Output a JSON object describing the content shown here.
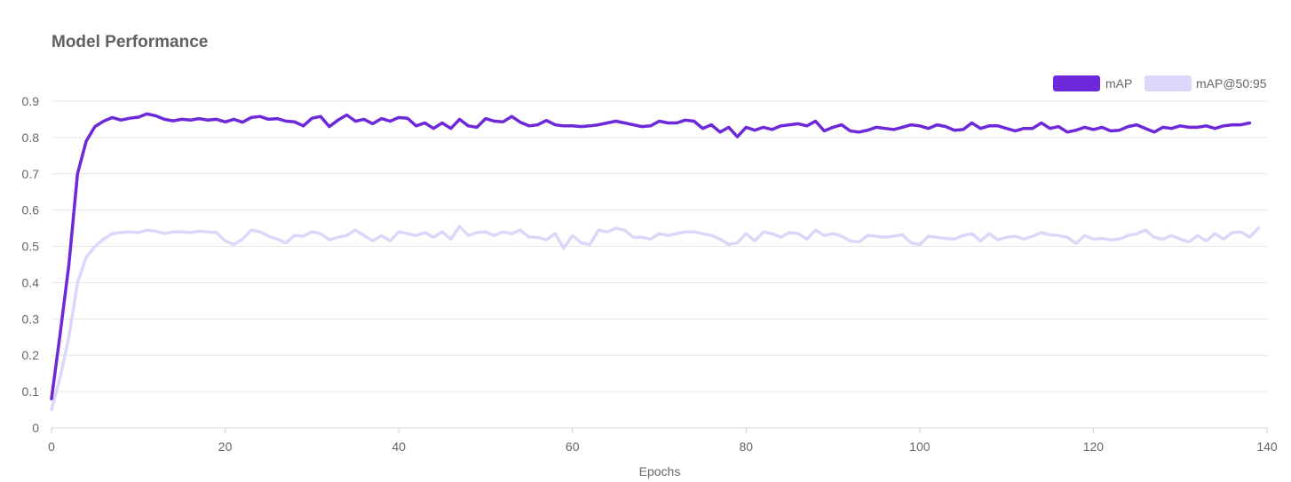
{
  "chart_data": {
    "type": "line",
    "title": "Model Performance",
    "xlabel": "Epochs",
    "ylabel": "",
    "xlim": [
      0,
      140
    ],
    "ylim": [
      0,
      0.9
    ],
    "xticks": [
      "0",
      "20",
      "40",
      "60",
      "80",
      "100",
      "120",
      "140"
    ],
    "yticks": [
      "0",
      "0.1",
      "0.2",
      "0.3",
      "0.4",
      "0.5",
      "0.6",
      "0.7",
      "0.8",
      "0.9"
    ],
    "grid": true,
    "legend_position": "top-right",
    "series": [
      {
        "name": "mAP",
        "color": "#6d28d9",
        "values": [
          0.08,
          0.26,
          0.45,
          0.7,
          0.79,
          0.83,
          0.845,
          0.855,
          0.848,
          0.853,
          0.856,
          0.865,
          0.86,
          0.85,
          0.846,
          0.85,
          0.848,
          0.852,
          0.848,
          0.85,
          0.843,
          0.85,
          0.842,
          0.855,
          0.858,
          0.85,
          0.852,
          0.845,
          0.843,
          0.832,
          0.853,
          0.858,
          0.83,
          0.848,
          0.862,
          0.845,
          0.85,
          0.838,
          0.852,
          0.845,
          0.855,
          0.853,
          0.832,
          0.84,
          0.825,
          0.84,
          0.825,
          0.85,
          0.832,
          0.828,
          0.852,
          0.845,
          0.843,
          0.858,
          0.842,
          0.832,
          0.835,
          0.847,
          0.835,
          0.832,
          0.832,
          0.83,
          0.832,
          0.835,
          0.84,
          0.845,
          0.84,
          0.835,
          0.83,
          0.832,
          0.845,
          0.84,
          0.84,
          0.848,
          0.845,
          0.825,
          0.835,
          0.815,
          0.828,
          0.802,
          0.828,
          0.82,
          0.828,
          0.822,
          0.832,
          0.835,
          0.838,
          0.832,
          0.845,
          0.818,
          0.828,
          0.835,
          0.818,
          0.815,
          0.82,
          0.828,
          0.825,
          0.822,
          0.828,
          0.835,
          0.832,
          0.825,
          0.835,
          0.83,
          0.82,
          0.822,
          0.84,
          0.825,
          0.832,
          0.832,
          0.825,
          0.818,
          0.825,
          0.825,
          0.84,
          0.825,
          0.83,
          0.815,
          0.82,
          0.828,
          0.822,
          0.828,
          0.818,
          0.82,
          0.83,
          0.835,
          0.825,
          0.815,
          0.828,
          0.825,
          0.832,
          0.828,
          0.828,
          0.832,
          0.825,
          0.832,
          0.835,
          0.835,
          0.84
        ]
      },
      {
        "name": "mAP@50:95",
        "color": "#dcd6fb",
        "values": [
          0.05,
          0.14,
          0.25,
          0.4,
          0.47,
          0.5,
          0.52,
          0.535,
          0.538,
          0.54,
          0.538,
          0.545,
          0.542,
          0.535,
          0.54,
          0.54,
          0.538,
          0.542,
          0.54,
          0.538,
          0.515,
          0.505,
          0.52,
          0.545,
          0.54,
          0.528,
          0.52,
          0.51,
          0.53,
          0.528,
          0.54,
          0.535,
          0.518,
          0.525,
          0.53,
          0.545,
          0.53,
          0.515,
          0.53,
          0.515,
          0.54,
          0.535,
          0.53,
          0.538,
          0.525,
          0.54,
          0.52,
          0.555,
          0.53,
          0.538,
          0.54,
          0.53,
          0.54,
          0.535,
          0.545,
          0.525,
          0.525,
          0.518,
          0.535,
          0.495,
          0.53,
          0.51,
          0.505,
          0.545,
          0.54,
          0.55,
          0.545,
          0.525,
          0.525,
          0.52,
          0.535,
          0.53,
          0.535,
          0.54,
          0.54,
          0.535,
          0.53,
          0.52,
          0.505,
          0.51,
          0.535,
          0.515,
          0.54,
          0.535,
          0.525,
          0.538,
          0.535,
          0.52,
          0.545,
          0.53,
          0.535,
          0.528,
          0.515,
          0.512,
          0.53,
          0.528,
          0.525,
          0.528,
          0.532,
          0.51,
          0.505,
          0.528,
          0.525,
          0.522,
          0.52,
          0.53,
          0.535,
          0.515,
          0.535,
          0.518,
          0.525,
          0.528,
          0.52,
          0.528,
          0.538,
          0.532,
          0.53,
          0.525,
          0.508,
          0.53,
          0.52,
          0.522,
          0.518,
          0.52,
          0.53,
          0.535,
          0.545,
          0.525,
          0.52,
          0.53,
          0.52,
          0.512,
          0.53,
          0.515,
          0.535,
          0.52,
          0.538,
          0.54,
          0.525,
          0.55
        ]
      }
    ]
  }
}
